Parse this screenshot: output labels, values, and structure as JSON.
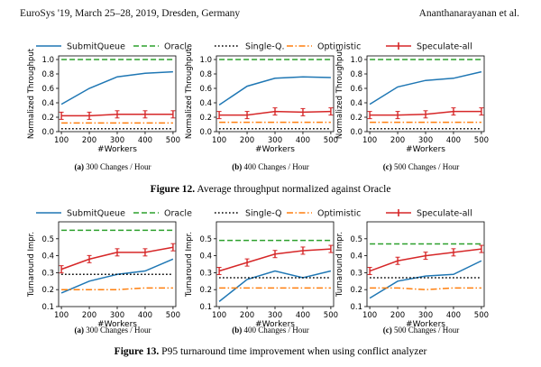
{
  "page_header": {
    "left": "EuroSys '19, March 25–28, 2019, Dresden, Germany",
    "right": "Ananthanarayanan et al."
  },
  "legend": [
    {
      "name": "SubmitQueue",
      "color": "#1f77b4",
      "style": "solid"
    },
    {
      "name": "Oracle",
      "color": "#2ca02c",
      "style": "dashed"
    },
    {
      "name": "Single-Q.",
      "color": "#000000",
      "style": "dotted"
    },
    {
      "name": "Optimistic",
      "color": "#ff7f0e",
      "style": "dashdot"
    },
    {
      "name": "Speculate-all",
      "color": "#d62728",
      "style": "solid-marker"
    }
  ],
  "legend2": [
    {
      "name": "SubmitQueue",
      "color": "#1f77b4",
      "style": "solid"
    },
    {
      "name": "Oracle",
      "color": "#2ca02c",
      "style": "dashed"
    },
    {
      "name": "Single-Q",
      "color": "#000000",
      "style": "dotted"
    },
    {
      "name": "Optimistic",
      "color": "#ff7f0e",
      "style": "dashdot"
    },
    {
      "name": "Speculate-all",
      "color": "#d62728",
      "style": "solid-marker"
    }
  ],
  "figure12_caption": {
    "label": "Figure 12.",
    "text": " Average throughput normalized against Oracle"
  },
  "figure13_caption": {
    "label": "Figure 13.",
    "text": " P95 turnaround time improvement when using conflict analyzer"
  },
  "chart_data": [
    {
      "type": "line",
      "figure": 12,
      "subcaption_label": "(a)",
      "subcaption": "300 Changes / Hour",
      "x": [
        100,
        200,
        300,
        400,
        500
      ],
      "xlabel": "#Workers",
      "ylabel": "Normalized Throughput",
      "ylim": [
        0,
        1.05
      ],
      "yticks": [
        0.0,
        0.2,
        0.4,
        0.6,
        0.8,
        1.0
      ],
      "series": [
        {
          "name": "SubmitQueue",
          "values": [
            0.38,
            0.6,
            0.76,
            0.81,
            0.83
          ]
        },
        {
          "name": "Oracle",
          "values": [
            1.0,
            1.0,
            1.0,
            1.0,
            1.0
          ]
        },
        {
          "name": "Single-Q.",
          "values": [
            0.04,
            0.04,
            0.04,
            0.04,
            0.04
          ]
        },
        {
          "name": "Optimistic",
          "values": [
            0.12,
            0.12,
            0.12,
            0.12,
            0.12
          ]
        },
        {
          "name": "Speculate-all",
          "values": [
            0.22,
            0.22,
            0.24,
            0.24,
            0.24
          ]
        }
      ]
    },
    {
      "type": "line",
      "figure": 12,
      "subcaption_label": "(b)",
      "subcaption": "400 Changes / Hour",
      "x": [
        100,
        200,
        300,
        400,
        500
      ],
      "xlabel": "#Workers",
      "ylabel": "Normalized Throughput",
      "ylim": [
        0,
        1.05
      ],
      "yticks": [
        0.0,
        0.2,
        0.4,
        0.6,
        0.8,
        1.0
      ],
      "series": [
        {
          "name": "SubmitQueue",
          "values": [
            0.37,
            0.63,
            0.74,
            0.76,
            0.75
          ]
        },
        {
          "name": "Oracle",
          "values": [
            1.0,
            1.0,
            1.0,
            1.0,
            1.0
          ]
        },
        {
          "name": "Single-Q.",
          "values": [
            0.04,
            0.04,
            0.04,
            0.04,
            0.04
          ]
        },
        {
          "name": "Optimistic",
          "values": [
            0.13,
            0.13,
            0.13,
            0.13,
            0.13
          ]
        },
        {
          "name": "Speculate-all",
          "values": [
            0.23,
            0.23,
            0.28,
            0.27,
            0.28
          ]
        }
      ]
    },
    {
      "type": "line",
      "figure": 12,
      "subcaption_label": "(c)",
      "subcaption": "500 Changes / Hour",
      "x": [
        100,
        200,
        300,
        400,
        500
      ],
      "xlabel": "#Workers",
      "ylabel": "Normalized Throughput",
      "ylim": [
        0,
        1.05
      ],
      "yticks": [
        0.0,
        0.2,
        0.4,
        0.6,
        0.8,
        1.0
      ],
      "series": [
        {
          "name": "SubmitQueue",
          "values": [
            0.38,
            0.62,
            0.71,
            0.74,
            0.83
          ]
        },
        {
          "name": "Oracle",
          "values": [
            1.0,
            1.0,
            1.0,
            1.0,
            1.0
          ]
        },
        {
          "name": "Single-Q.",
          "values": [
            0.04,
            0.04,
            0.04,
            0.04,
            0.04
          ]
        },
        {
          "name": "Optimistic",
          "values": [
            0.13,
            0.13,
            0.13,
            0.13,
            0.13
          ]
        },
        {
          "name": "Speculate-all",
          "values": [
            0.23,
            0.23,
            0.24,
            0.28,
            0.28
          ]
        }
      ]
    },
    {
      "type": "line",
      "figure": 13,
      "subcaption_label": "(a)",
      "subcaption": "300 Changes / Hour",
      "x": [
        100,
        200,
        300,
        400,
        500
      ],
      "xlabel": "#Workers",
      "ylabel": "Turnaround Impr.",
      "ylim": [
        0.1,
        0.6
      ],
      "yticks": [
        0.1,
        0.2,
        0.3,
        0.4,
        0.5
      ],
      "series": [
        {
          "name": "SubmitQueue",
          "values": [
            0.18,
            0.25,
            0.29,
            0.31,
            0.38
          ]
        },
        {
          "name": "Oracle",
          "values": [
            0.55,
            0.55,
            0.55,
            0.55,
            0.55
          ]
        },
        {
          "name": "Single-Q",
          "values": [
            0.29,
            0.29,
            0.29,
            0.29,
            0.29
          ]
        },
        {
          "name": "Optimistic",
          "values": [
            0.2,
            0.2,
            0.2,
            0.21,
            0.21
          ]
        },
        {
          "name": "Speculate-all",
          "values": [
            0.32,
            0.38,
            0.42,
            0.42,
            0.45
          ]
        }
      ]
    },
    {
      "type": "line",
      "figure": 13,
      "subcaption_label": "(b)",
      "subcaption": "400 Changes / Hour",
      "x": [
        100,
        200,
        300,
        400,
        500
      ],
      "xlabel": "#Workers",
      "ylabel": "Turnaround Impr.",
      "ylim": [
        0.1,
        0.6
      ],
      "yticks": [
        0.1,
        0.2,
        0.3,
        0.4,
        0.5
      ],
      "series": [
        {
          "name": "SubmitQueue",
          "values": [
            0.13,
            0.26,
            0.31,
            0.27,
            0.31
          ]
        },
        {
          "name": "Oracle",
          "values": [
            0.49,
            0.49,
            0.49,
            0.49,
            0.49
          ]
        },
        {
          "name": "Single-Q",
          "values": [
            0.27,
            0.27,
            0.27,
            0.27,
            0.27
          ]
        },
        {
          "name": "Optimistic",
          "values": [
            0.21,
            0.21,
            0.21,
            0.21,
            0.21
          ]
        },
        {
          "name": "Speculate-all",
          "values": [
            0.31,
            0.36,
            0.41,
            0.43,
            0.44
          ]
        }
      ]
    },
    {
      "type": "line",
      "figure": 13,
      "subcaption_label": "(c)",
      "subcaption": "500 Changes / Hour",
      "x": [
        100,
        200,
        300,
        400,
        500
      ],
      "xlabel": "#Workers",
      "ylabel": "Turnaround Impr.",
      "ylim": [
        0.1,
        0.6
      ],
      "yticks": [
        0.1,
        0.2,
        0.3,
        0.4,
        0.5
      ],
      "series": [
        {
          "name": "SubmitQueue",
          "values": [
            0.15,
            0.25,
            0.28,
            0.29,
            0.37
          ]
        },
        {
          "name": "Oracle",
          "values": [
            0.47,
            0.47,
            0.47,
            0.47,
            0.47
          ]
        },
        {
          "name": "Single-Q",
          "values": [
            0.27,
            0.27,
            0.27,
            0.27,
            0.27
          ]
        },
        {
          "name": "Optimistic",
          "values": [
            0.21,
            0.21,
            0.2,
            0.21,
            0.21
          ]
        },
        {
          "name": "Speculate-all",
          "values": [
            0.31,
            0.37,
            0.4,
            0.42,
            0.44
          ]
        }
      ]
    }
  ]
}
